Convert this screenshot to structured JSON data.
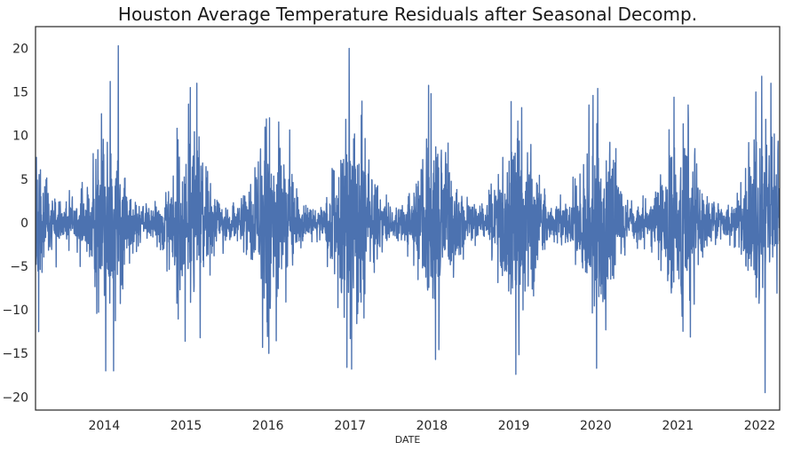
{
  "chart_data": {
    "type": "line",
    "title": "Houston Average Temperature Residuals after Seasonal Decomp.",
    "xlabel": "DATE",
    "ylabel": "",
    "xlim": [
      "2013-03-01",
      "2022-03-31"
    ],
    "ylim": [
      -21.5,
      22.5
    ],
    "x_ticks": [
      "2014",
      "2015",
      "2016",
      "2017",
      "2018",
      "2019",
      "2020",
      "2021",
      "2022"
    ],
    "y_ticks": [
      20,
      15,
      10,
      5,
      0,
      -5,
      -10,
      -15,
      -20
    ],
    "grid": false,
    "legend": "none",
    "frequency": "daily",
    "series": [
      {
        "color": "#4c72b0",
        "summary": "Daily residuals oscillating around 0; amplitude largest in winter months (roughly ±10 to ±20) and smallest in summer (roughly ±2 to ±4).",
        "peaks": [
          {
            "date": "2013-03-05",
            "value": 7.5
          },
          {
            "date": "2013-03-15",
            "value": -12.5
          },
          {
            "date": "2013-12-20",
            "value": 12.5
          },
          {
            "date": "2014-01-08",
            "value": -17.0
          },
          {
            "date": "2014-01-28",
            "value": 16.2
          },
          {
            "date": "2014-02-12",
            "value": -17.0
          },
          {
            "date": "2014-03-05",
            "value": 20.3
          },
          {
            "date": "2014-12-28",
            "value": -13.6
          },
          {
            "date": "2015-01-20",
            "value": 15.5
          },
          {
            "date": "2015-02-18",
            "value": 16.0
          },
          {
            "date": "2015-03-05",
            "value": -13.2
          },
          {
            "date": "2015-12-25",
            "value": 11.9
          },
          {
            "date": "2016-01-05",
            "value": -15.0
          },
          {
            "date": "2016-12-18",
            "value": -16.6
          },
          {
            "date": "2016-12-28",
            "value": 20.0
          },
          {
            "date": "2017-01-08",
            "value": -16.8
          },
          {
            "date": "2017-12-28",
            "value": 14.8
          },
          {
            "date": "2018-01-17",
            "value": -15.7
          },
          {
            "date": "2018-12-20",
            "value": 13.9
          },
          {
            "date": "2019-01-10",
            "value": -17.4
          },
          {
            "date": "2019-12-20",
            "value": 14.6
          },
          {
            "date": "2020-01-05",
            "value": -16.7
          },
          {
            "date": "2020-12-15",
            "value": 14.4
          },
          {
            "date": "2021-02-16",
            "value": 13.5
          },
          {
            "date": "2021-12-15",
            "value": 15.0
          },
          {
            "date": "2022-01-10",
            "value": 16.8
          },
          {
            "date": "2022-01-25",
            "value": -19.5
          },
          {
            "date": "2022-02-20",
            "value": 16.0
          }
        ]
      }
    ]
  }
}
